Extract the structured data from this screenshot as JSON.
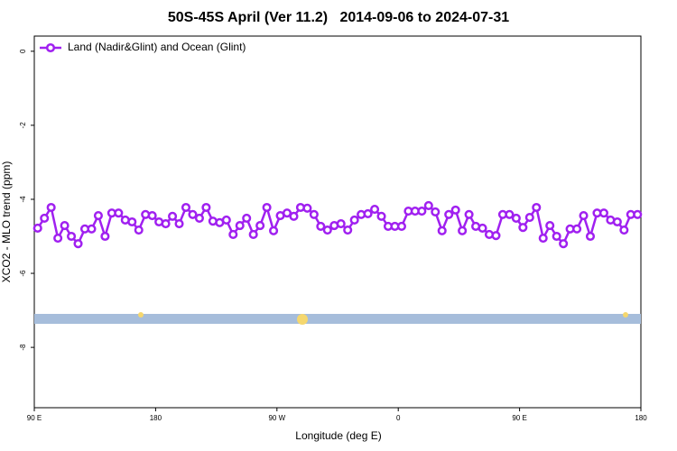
{
  "chart_data": {
    "type": "line",
    "title": "50S-45S April (Ver 11.2)   2014-09-06 to 2024-07-31",
    "x_label": "Longitude (deg E)",
    "y_label": "XCO2 - MLO trend (ppm)",
    "x": [
      92.5,
      97.5,
      102.5,
      107.5,
      112.5,
      117.5,
      122.5,
      127.5,
      132.5,
      137.5,
      142.5,
      147.5,
      152.5,
      157.5,
      162.5,
      167.5,
      172.5,
      177.5,
      182.5,
      187.5,
      192.5,
      197.5,
      202.5,
      207.5,
      212.5,
      217.5,
      222.5,
      227.5,
      232.5,
      237.5,
      242.5,
      247.5,
      252.5,
      257.5,
      262.5,
      267.5,
      272.5,
      277.5,
      282.5,
      287.5,
      292.5,
      297.5,
      302.5,
      307.5,
      312.5,
      317.5,
      322.5,
      327.5,
      332.5,
      337.5,
      342.5,
      347.5,
      352.5,
      357.5,
      362.5,
      367.5,
      372.5,
      377.5,
      382.5,
      387.5,
      392.5,
      397.5,
      402.5,
      407.5,
      412.5,
      417.5,
      422.5,
      427.5,
      432.5,
      437.5,
      442.5,
      447.5,
      452.5,
      457.5,
      462.5,
      467.5,
      472.5,
      477.5,
      482.5,
      487.5,
      492.5,
      497.5,
      502.5,
      507.5,
      512.5,
      517.5,
      522.5,
      527.5,
      532.5,
      537.5
    ],
    "series": [
      {
        "name": "Land (Nadir&Glint) and Ocean (Glint)",
        "color": "#a020f0",
        "values": [
          -4.78,
          -4.51,
          -4.22,
          -5.05,
          -4.71,
          -5.0,
          -5.2,
          -4.8,
          -4.8,
          -4.44,
          -5.0,
          -4.37,
          -4.37,
          -4.56,
          -4.61,
          -4.83,
          -4.41,
          -4.44,
          -4.61,
          -4.66,
          -4.46,
          -4.66,
          -4.22,
          -4.41,
          -4.51,
          -4.22,
          -4.59,
          -4.63,
          -4.56,
          -4.95,
          -4.71,
          -4.51,
          -4.95,
          -4.71,
          -4.22,
          -4.85,
          -4.44,
          -4.37,
          -4.46,
          -4.22,
          -4.24,
          -4.41,
          -4.73,
          -4.83,
          -4.71,
          -4.66,
          -4.83,
          -4.56,
          -4.41,
          -4.39,
          -4.27,
          -4.46,
          -4.73,
          -4.73,
          -4.73,
          -4.32,
          -4.32,
          -4.32,
          -4.17,
          -4.34,
          -4.85,
          -4.41,
          -4.29,
          -4.85,
          -4.41,
          -4.73,
          -4.78,
          -4.95,
          -4.98,
          -4.41,
          -4.41,
          -4.51,
          -4.76,
          -4.49,
          -4.22,
          -5.05,
          -4.71,
          -5.0,
          -5.2,
          -4.8,
          -4.8,
          -4.44,
          -5.0,
          -4.37,
          -4.37,
          -4.56,
          -4.61,
          -4.83,
          -4.41,
          -4.41
        ]
      }
    ],
    "xlim": [
      90,
      540
    ],
    "xticks": [
      {
        "value": 90,
        "label": "90 E"
      },
      180,
      {
        "value": 270,
        "label": "90 W"
      },
      {
        "value": 360,
        "label": "0"
      },
      {
        "value": 450,
        "label": "90 E"
      },
      {
        "value": 540,
        "label": "180"
      }
    ],
    "ylim": [
      -9.63,
      0.41
    ],
    "yticks": [
      0,
      -2,
      -4,
      -6,
      -8
    ],
    "legend": "top-left"
  }
}
